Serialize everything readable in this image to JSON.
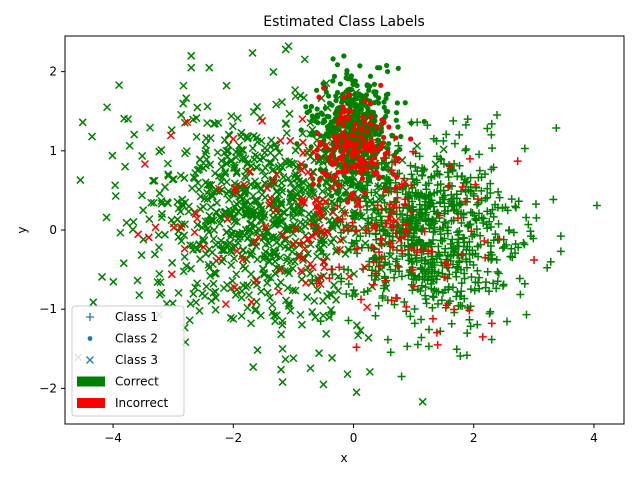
{
  "chart_data": {
    "type": "scatter",
    "title": "Estimated Class Labels",
    "xlabel": "x",
    "ylabel": "y",
    "xlim": [
      -4.8,
      4.5
    ],
    "ylim": [
      -2.45,
      2.45
    ],
    "xticks": [
      -4,
      -2,
      0,
      2,
      4
    ],
    "yticks": [
      -2,
      -1,
      0,
      1,
      2
    ],
    "grid": false,
    "legend_position": "lower-left",
    "legend": [
      {
        "label": "Class 1",
        "marker": "plus",
        "color": "#1f77b4"
      },
      {
        "label": "Class 2",
        "marker": "dot",
        "color": "#1f77b4"
      },
      {
        "label": "Class 3",
        "marker": "x",
        "color": "#1f77b4"
      },
      {
        "label": "Correct",
        "marker": "patch",
        "color": "#008000"
      },
      {
        "label": "Incorrect",
        "marker": "patch",
        "color": "#ff0000"
      }
    ],
    "colors": {
      "correct": "#008000",
      "incorrect": "#ff0000"
    },
    "series": [
      {
        "class": "Class 1",
        "marker": "plus",
        "center": [
          1.2,
          0.0
        ],
        "spread": [
          0.75,
          0.55
        ],
        "approx_count": 900,
        "incorrect_fraction": 0.06
      },
      {
        "class": "Class 2",
        "marker": "dot",
        "center": [
          0.0,
          1.2
        ],
        "spread": [
          0.3,
          0.35
        ],
        "approx_count": 700,
        "incorrect_fraction": 0.08
      },
      {
        "class": "Class 3",
        "marker": "x",
        "center": [
          -1.5,
          0.2
        ],
        "spread": [
          1.0,
          0.7
        ],
        "approx_count": 1000,
        "incorrect_fraction": 0.05
      }
    ],
    "sample_points": [
      {
        "x": 4.05,
        "y": 0.31,
        "class": "Class 1",
        "correct": true
      },
      {
        "x": 3.45,
        "y": -0.27,
        "class": "Class 1",
        "correct": true
      },
      {
        "x": 2.85,
        "y": 1.03,
        "class": "Class 1",
        "correct": true
      },
      {
        "x": 2.3,
        "y": 1.34,
        "class": "Class 1",
        "correct": true
      },
      {
        "x": 1.9,
        "y": 1.4,
        "class": "Class 1",
        "correct": true
      },
      {
        "x": 2.3,
        "y": -1.18,
        "class": "Class 1",
        "correct": false
      },
      {
        "x": 2.15,
        "y": -1.35,
        "class": "Class 1",
        "correct": false
      },
      {
        "x": 1.4,
        "y": -1.45,
        "class": "Class 1",
        "correct": false
      },
      {
        "x": 0.05,
        "y": -1.48,
        "class": "Class 1",
        "correct": false
      },
      {
        "x": 0.8,
        "y": -1.85,
        "class": "Class 1",
        "correct": true
      },
      {
        "x": 1.15,
        "y": -2.17,
        "class": "Class 3",
        "correct": true
      },
      {
        "x": -4.35,
        "y": 1.18,
        "class": "Class 3",
        "correct": true
      },
      {
        "x": -4.1,
        "y": 1.55,
        "class": "Class 3",
        "correct": true
      },
      {
        "x": -3.9,
        "y": 1.83,
        "class": "Class 3",
        "correct": true
      },
      {
        "x": -3.75,
        "y": 1.4,
        "class": "Class 3",
        "correct": true
      },
      {
        "x": -3.8,
        "y": 0.8,
        "class": "Class 3",
        "correct": true
      },
      {
        "x": -3.5,
        "y": 0.25,
        "class": "Class 3",
        "correct": true
      },
      {
        "x": -2.7,
        "y": 2.2,
        "class": "Class 3",
        "correct": true
      },
      {
        "x": -2.7,
        "y": 2.05,
        "class": "Class 3",
        "correct": true
      },
      {
        "x": -2.4,
        "y": 2.05,
        "class": "Class 3",
        "correct": true
      },
      {
        "x": -1.0,
        "y": -1.62,
        "class": "Class 3",
        "correct": true
      },
      {
        "x": -0.5,
        "y": -1.95,
        "class": "Class 3",
        "correct": true
      },
      {
        "x": -0.1,
        "y": -1.82,
        "class": "Class 3",
        "correct": true
      },
      {
        "x": 0.05,
        "y": -2.05,
        "class": "Class 3",
        "correct": true
      },
      {
        "x": 0.4,
        "y": 2.05,
        "class": "Class 2",
        "correct": true
      },
      {
        "x": -0.85,
        "y": 1.4,
        "class": "Class 3",
        "correct": false
      },
      {
        "x": 0.95,
        "y": 1.15,
        "class": "Class 2",
        "correct": false
      },
      {
        "x": 1.55,
        "y": -0.95,
        "class": "Class 1",
        "correct": false
      }
    ]
  }
}
